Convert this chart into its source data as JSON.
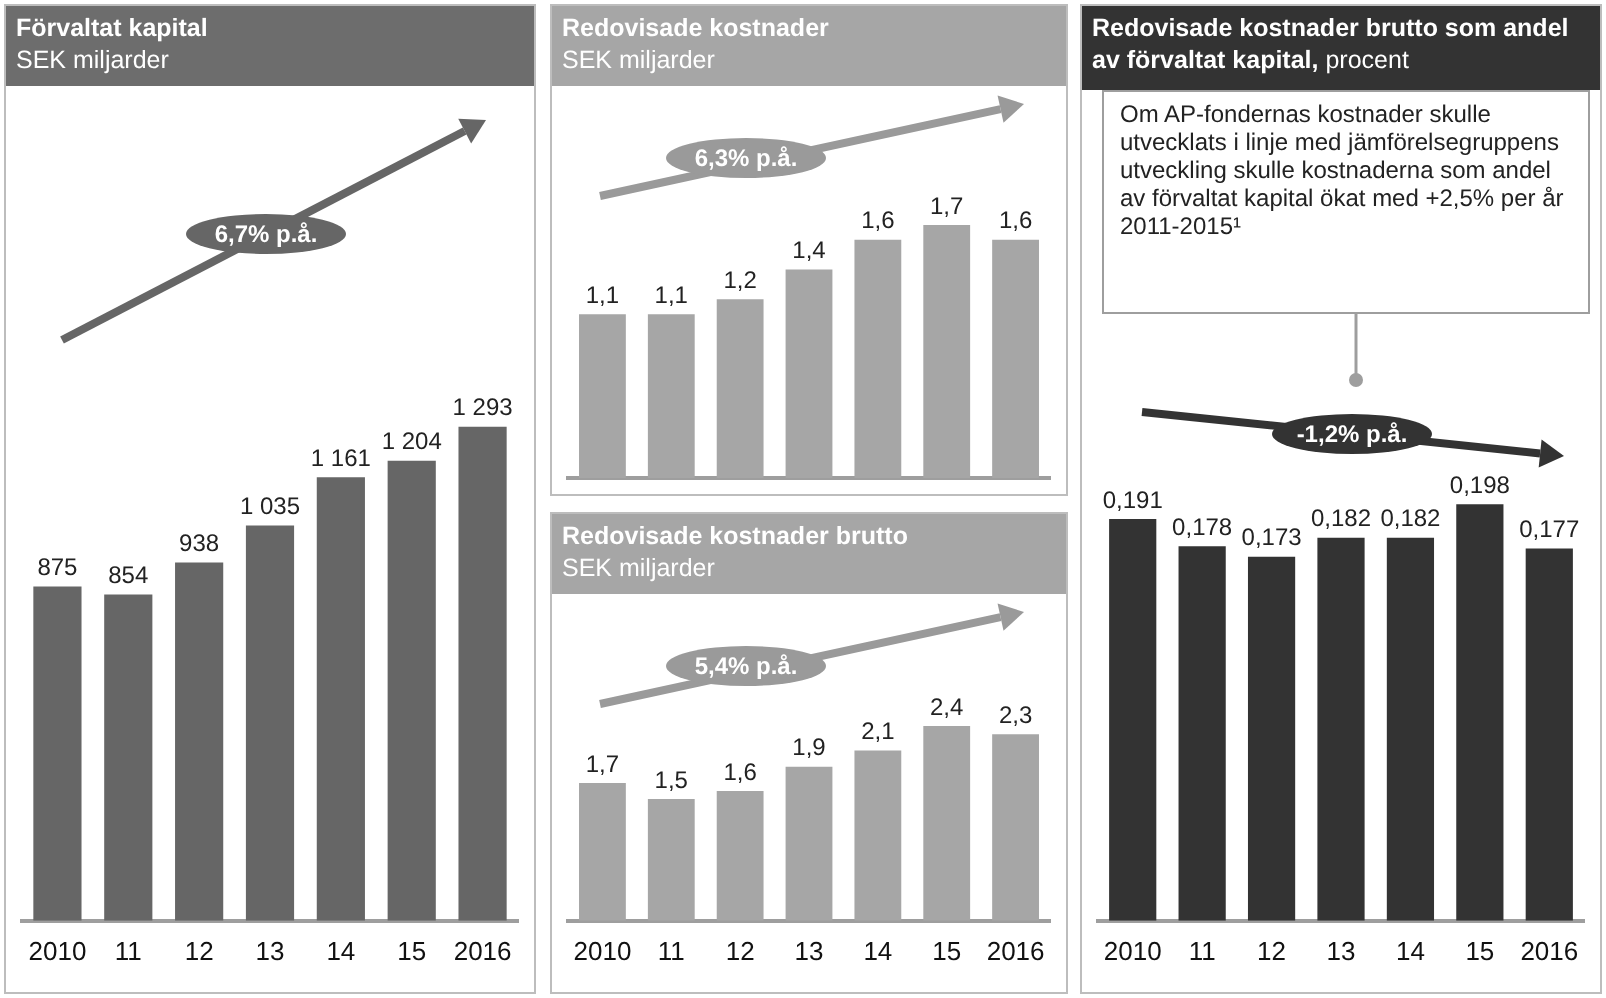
{
  "chart_data": [
    {
      "type": "bar",
      "title": "Förvaltat kapital",
      "subtitle": "SEK miljarder",
      "categories": [
        "2010",
        "11",
        "12",
        "13",
        "14",
        "15",
        "2016"
      ],
      "values": [
        875,
        854,
        938,
        1035,
        1161,
        1204,
        1293
      ],
      "value_labels": [
        "875",
        "854",
        "938",
        "1 035",
        "1 161",
        "1 204",
        "1 293"
      ],
      "color": "#666666",
      "tick_labels": "x",
      "annotations": [
        "6,7% p.å."
      ]
    },
    {
      "type": "bar",
      "title": "Redovisade kostnader",
      "subtitle": "SEK miljarder",
      "categories": [
        "2010",
        "11",
        "12",
        "13",
        "14",
        "15",
        "2016"
      ],
      "values": [
        1.1,
        1.1,
        1.2,
        1.4,
        1.6,
        1.7,
        1.6
      ],
      "value_labels": [
        "1,1",
        "1,1",
        "1,2",
        "1,4",
        "1,6",
        "1,7",
        "1,6"
      ],
      "color": "#a6a6a6",
      "tick_labels": false,
      "annotations": [
        "6,3% p.å."
      ]
    },
    {
      "type": "bar",
      "title": "Redovisade kostnader brutto",
      "subtitle": "SEK miljarder",
      "categories": [
        "2010",
        "11",
        "12",
        "13",
        "14",
        "15",
        "2016"
      ],
      "values": [
        1.7,
        1.5,
        1.6,
        1.9,
        2.1,
        2.4,
        2.3
      ],
      "value_labels": [
        "1,7",
        "1,5",
        "1,6",
        "1,9",
        "2,1",
        "2,4",
        "2,3"
      ],
      "color": "#a6a6a6",
      "tick_labels": "x",
      "annotations": [
        "5,4% p.å."
      ]
    },
    {
      "type": "bar",
      "title": "Redovisade kostnader brutto som andel av förvaltat kapital,",
      "subtitle": "procent",
      "categories": [
        "2010",
        "11",
        "12",
        "13",
        "14",
        "15",
        "2016"
      ],
      "values": [
        0.191,
        0.178,
        0.173,
        0.182,
        0.182,
        0.198,
        0.177
      ],
      "value_labels": [
        "0,191",
        "0,178",
        "0,173",
        "0,182",
        "0,182",
        "0,198",
        "0,177"
      ],
      "color": "#333333",
      "tick_labels": "x",
      "annotations": [
        "-1,2% p.å.",
        "Om AP-fondernas kostnader skulle utvecklats i linje med jämförelsegruppens utveckling skulle kostnaderna som andel av förvaltat kapital ökat med +2,5% per år 2011-2015¹"
      ]
    }
  ]
}
